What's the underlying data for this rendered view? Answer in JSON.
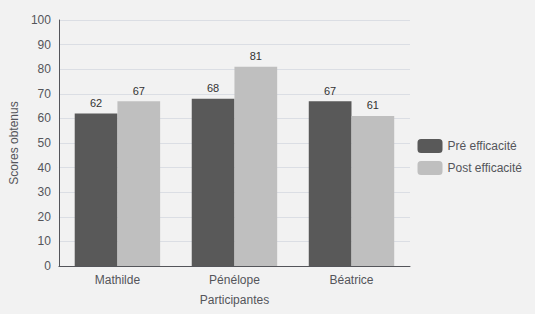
{
  "chart_data": {
    "type": "bar",
    "xlabel": "Participantes",
    "ylabel": "Scores obtenus",
    "categories": [
      "Mathilde",
      "Pénélope",
      "Béatrice"
    ],
    "series": [
      {
        "name": "Pré efficacité",
        "color": "#595959",
        "values": [
          62,
          68,
          67
        ]
      },
      {
        "name": "Post efficacité",
        "color": "#bfbfbf",
        "values": [
          67,
          81,
          61
        ]
      }
    ],
    "ylim": [
      0,
      100
    ],
    "yticks": [
      0,
      10,
      20,
      30,
      40,
      50,
      60,
      70,
      80,
      90,
      100
    ],
    "grid": true,
    "legend": "right",
    "data_labels": true
  }
}
